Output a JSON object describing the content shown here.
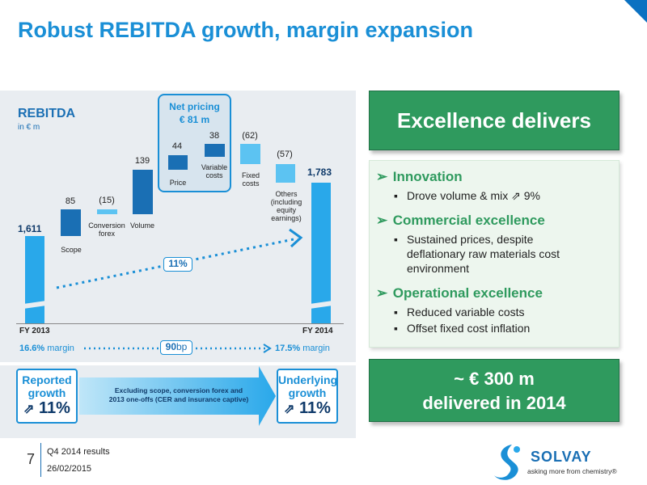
{
  "title": "Robust REBITDA growth, margin expansion",
  "chart": {
    "title": "REBITDA",
    "unit": "in € m",
    "net_pricing_title": "Net pricing",
    "net_pricing_value": "€ 81 m",
    "growth_label": "11%",
    "fy2013": "FY 2013",
    "fy2014": "FY 2014",
    "margin_2013": "16.6%",
    "margin_2014": "17.5%",
    "margin_word": "margin",
    "margin_delta": "90",
    "margin_delta_unit": "bp",
    "colors": {
      "bar_light": "#29a8ea",
      "bar_dark": "#1a6fb4",
      "bar_pale": "#5cc3f2",
      "accent": "#1a8fd6"
    }
  },
  "chart_data": {
    "type": "bar",
    "title": "REBITDA",
    "ylabel": "in € m",
    "categories": [
      "FY 2013",
      "Scope",
      "Conversion forex",
      "Volume",
      "Price",
      "Variable costs",
      "Fixed costs",
      "Others (including equity earnings)",
      "FY 2014"
    ],
    "values": [
      1611,
      85,
      -15,
      139,
      44,
      38,
      -62,
      -57,
      1783
    ],
    "value_labels": [
      "1,611",
      "85",
      "(15)",
      "139",
      "44",
      "38",
      "(62)",
      "(57)",
      "1,783"
    ]
  },
  "waterfall": {
    "fy2013_value": "1,611",
    "scope_value": "85",
    "scope_label": "Scope",
    "forex_value": "(15)",
    "forex_label_1": "Conversion",
    "forex_label_2": "forex",
    "volume_value": "139",
    "volume_label": "Volume",
    "price_value": "44",
    "price_label": "Price",
    "varcost_value": "38",
    "varcost_label_1": "Variable",
    "varcost_label_2": "costs",
    "fixcost_value": "(62)",
    "fixcost_label_1": "Fixed",
    "fixcost_label_2": "costs",
    "others_value": "(57)",
    "others_label_1": "Others",
    "others_label_2": "(including",
    "others_label_3": "equity",
    "others_label_4": "earnings)",
    "fy2014_value": "1,783"
  },
  "bottom": {
    "reported_1": "Reported",
    "reported_2": "growth",
    "reported_value": "11%",
    "arrow_text_1": "Excluding scope, conversion forex and",
    "arrow_text_2": "2013 one-offs (CER and insurance captive)",
    "underlying_1": "Underlying",
    "underlying_2": "growth",
    "underlying_value": "11%",
    "up_arrow": "⇗"
  },
  "right": {
    "banner_top": "Excellence delivers",
    "items": [
      {
        "heading": "Innovation",
        "subs": [
          "Drove volume & mix ⇗ 9%"
        ]
      },
      {
        "heading": "Commercial excellence",
        "subs": [
          "Sustained prices, despite",
          "deflationary raw materials cost",
          "environment"
        ]
      },
      {
        "heading": "Operational excellence",
        "subs": [
          "Reduced variable costs",
          "Offset fixed cost inflation"
        ]
      }
    ],
    "heading_bullet": "➢",
    "sub_bullet": "▪",
    "banner_bottom_1": "~ € 300 m",
    "banner_bottom_2": "delivered in 2014"
  },
  "footer": {
    "page": "7",
    "line1": "Q4 2014 results",
    "line2": "26/02/2015"
  },
  "logo": {
    "name": "SOLVAY",
    "tagline": "asking more from chemistry®"
  }
}
